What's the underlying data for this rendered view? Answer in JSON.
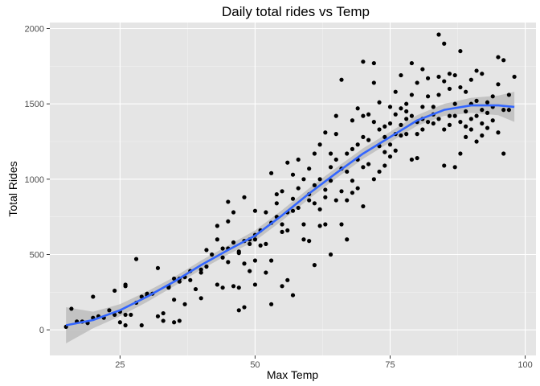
{
  "chart_data": {
    "type": "scatter",
    "title": "Daily total rides vs Temp",
    "xlabel": "Max Temp",
    "ylabel": "Total Rides",
    "xlim": [
      12,
      102
    ],
    "ylim": [
      -170,
      2040
    ],
    "x_ticks": [
      25,
      50,
      75,
      100
    ],
    "y_ticks": [
      0,
      500,
      1000,
      1500,
      2000
    ],
    "grid": true,
    "panel_background": "#e5e5e5",
    "point_color": "#000000",
    "smooth_color": "#3366ff",
    "ribbon_color": "#bdbdbd",
    "points": [
      [
        15,
        20
      ],
      [
        16,
        140
      ],
      [
        17,
        55
      ],
      [
        18,
        55
      ],
      [
        19,
        45
      ],
      [
        20,
        80
      ],
      [
        20,
        220
      ],
      [
        21,
        90
      ],
      [
        22,
        80
      ],
      [
        23,
        130
      ],
      [
        24,
        100
      ],
      [
        24,
        260
      ],
      [
        25,
        120
      ],
      [
        25,
        50
      ],
      [
        26,
        30
      ],
      [
        26,
        290
      ],
      [
        26,
        300
      ],
      [
        26,
        100
      ],
      [
        27,
        100
      ],
      [
        28,
        470
      ],
      [
        28,
        180
      ],
      [
        29,
        30
      ],
      [
        29,
        220
      ],
      [
        30,
        240
      ],
      [
        30,
        230
      ],
      [
        31,
        240
      ],
      [
        32,
        410
      ],
      [
        32,
        90
      ],
      [
        33,
        110
      ],
      [
        33,
        60
      ],
      [
        34,
        290
      ],
      [
        34,
        280
      ],
      [
        35,
        340
      ],
      [
        35,
        200
      ],
      [
        35,
        50
      ],
      [
        36,
        60
      ],
      [
        36,
        320
      ],
      [
        36,
        340
      ],
      [
        37,
        350
      ],
      [
        37,
        170
      ],
      [
        38,
        330
      ],
      [
        38,
        390
      ],
      [
        39,
        270
      ],
      [
        40,
        210
      ],
      [
        40,
        400
      ],
      [
        40,
        380
      ],
      [
        41,
        530
      ],
      [
        41,
        420
      ],
      [
        42,
        500
      ],
      [
        43,
        690
      ],
      [
        43,
        600
      ],
      [
        43,
        300
      ],
      [
        44,
        540
      ],
      [
        44,
        480
      ],
      [
        44,
        280
      ],
      [
        45,
        540
      ],
      [
        45,
        450
      ],
      [
        45,
        850
      ],
      [
        45,
        720
      ],
      [
        46,
        580
      ],
      [
        46,
        290
      ],
      [
        46,
        780
      ],
      [
        47,
        510
      ],
      [
        47,
        280
      ],
      [
        47,
        130
      ],
      [
        47,
        520
      ],
      [
        48,
        590
      ],
      [
        48,
        880
      ],
      [
        48,
        150
      ],
      [
        48,
        440
      ],
      [
        49,
        600
      ],
      [
        49,
        570
      ],
      [
        49,
        390
      ],
      [
        50,
        790
      ],
      [
        50,
        630
      ],
      [
        50,
        600
      ],
      [
        50,
        300
      ],
      [
        50,
        460
      ],
      [
        51,
        560
      ],
      [
        51,
        660
      ],
      [
        52,
        780
      ],
      [
        52,
        570
      ],
      [
        52,
        380
      ],
      [
        53,
        1040
      ],
      [
        53,
        710
      ],
      [
        53,
        460
      ],
      [
        53,
        170
      ],
      [
        54,
        900
      ],
      [
        54,
        840
      ],
      [
        54,
        750
      ],
      [
        55,
        920
      ],
      [
        55,
        700
      ],
      [
        55,
        650
      ],
      [
        55,
        290
      ],
      [
        56,
        1110
      ],
      [
        56,
        780
      ],
      [
        56,
        660
      ],
      [
        56,
        330
      ],
      [
        57,
        1030
      ],
      [
        57,
        870
      ],
      [
        57,
        790
      ],
      [
        57,
        230
      ],
      [
        58,
        1130
      ],
      [
        58,
        940
      ],
      [
        58,
        810
      ],
      [
        59,
        1000
      ],
      [
        59,
        700
      ],
      [
        59,
        600
      ],
      [
        60,
        1070
      ],
      [
        60,
        900
      ],
      [
        60,
        860
      ],
      [
        60,
        590
      ],
      [
        61,
        1170
      ],
      [
        61,
        960
      ],
      [
        61,
        840
      ],
      [
        61,
        430
      ],
      [
        62,
        1230
      ],
      [
        62,
        1000
      ],
      [
        62,
        800
      ],
      [
        62,
        690
      ],
      [
        63,
        1310
      ],
      [
        63,
        930
      ],
      [
        63,
        880
      ],
      [
        63,
        700
      ],
      [
        64,
        1170
      ],
      [
        64,
        1080
      ],
      [
        64,
        990
      ],
      [
        64,
        500
      ],
      [
        65,
        1420
      ],
      [
        65,
        1300
      ],
      [
        65,
        1130
      ],
      [
        65,
        860
      ],
      [
        66,
        1660
      ],
      [
        66,
        1070
      ],
      [
        66,
        920
      ],
      [
        66,
        700
      ],
      [
        67,
        1170
      ],
      [
        67,
        1050
      ],
      [
        67,
        860
      ],
      [
        67,
        600
      ],
      [
        68,
        1390
      ],
      [
        68,
        1200
      ],
      [
        68,
        990
      ],
      [
        68,
        910
      ],
      [
        69,
        1470
      ],
      [
        69,
        1230
      ],
      [
        69,
        1130
      ],
      [
        69,
        940
      ],
      [
        70,
        1780
      ],
      [
        70,
        1420
      ],
      [
        70,
        1280
      ],
      [
        70,
        1080
      ],
      [
        70,
        820
      ],
      [
        71,
        1430
      ],
      [
        71,
        1260
      ],
      [
        71,
        1100
      ],
      [
        72,
        1770
      ],
      [
        72,
        1640
      ],
      [
        72,
        1380
      ],
      [
        72,
        1000
      ],
      [
        73,
        1510
      ],
      [
        73,
        1330
      ],
      [
        73,
        1220
      ],
      [
        73,
        1050
      ],
      [
        74,
        1350
      ],
      [
        74,
        1280
      ],
      [
        74,
        1180
      ],
      [
        74,
        1090
      ],
      [
        75,
        1480
      ],
      [
        75,
        1370
      ],
      [
        75,
        1230
      ],
      [
        75,
        1150
      ],
      [
        76,
        1580
      ],
      [
        76,
        1430
      ],
      [
        76,
        1300
      ],
      [
        76,
        1190
      ],
      [
        77,
        1690
      ],
      [
        77,
        1470
      ],
      [
        77,
        1360
      ],
      [
        77,
        1290
      ],
      [
        78,
        1500
      ],
      [
        78,
        1450
      ],
      [
        78,
        1400
      ],
      [
        78,
        1300
      ],
      [
        79,
        1770
      ],
      [
        79,
        1560
      ],
      [
        79,
        1420
      ],
      [
        79,
        1130
      ],
      [
        80,
        1640
      ],
      [
        80,
        1380
      ],
      [
        80,
        1300
      ],
      [
        80,
        1140
      ],
      [
        81,
        1730
      ],
      [
        81,
        1480
      ],
      [
        81,
        1400
      ],
      [
        81,
        1330
      ],
      [
        82,
        1670
      ],
      [
        82,
        1550
      ],
      [
        82,
        1380
      ],
      [
        83,
        1480
      ],
      [
        83,
        1430
      ],
      [
        83,
        1370
      ],
      [
        84,
        1960
      ],
      [
        84,
        1680
      ],
      [
        84,
        1560
      ],
      [
        84,
        1400
      ],
      [
        85,
        1900
      ],
      [
        85,
        1650
      ],
      [
        85,
        1330
      ],
      [
        85,
        1090
      ],
      [
        86,
        1700
      ],
      [
        86,
        1600
      ],
      [
        86,
        1420
      ],
      [
        86,
        1360
      ],
      [
        87,
        1690
      ],
      [
        87,
        1500
      ],
      [
        87,
        1420
      ],
      [
        87,
        1080
      ],
      [
        88,
        1850
      ],
      [
        88,
        1610
      ],
      [
        88,
        1380
      ],
      [
        88,
        1170
      ],
      [
        89,
        1580
      ],
      [
        89,
        1450
      ],
      [
        89,
        1350
      ],
      [
        89,
        1280
      ],
      [
        90,
        1660
      ],
      [
        90,
        1500
      ],
      [
        90,
        1400
      ],
      [
        90,
        1330
      ],
      [
        91,
        1720
      ],
      [
        91,
        1520
      ],
      [
        91,
        1420
      ],
      [
        91,
        1250
      ],
      [
        92,
        1700
      ],
      [
        92,
        1460
      ],
      [
        92,
        1370
      ],
      [
        92,
        1290
      ],
      [
        93,
        1510
      ],
      [
        93,
        1440
      ],
      [
        93,
        1340
      ],
      [
        94,
        1550
      ],
      [
        94,
        1480
      ],
      [
        94,
        1390
      ],
      [
        95,
        1810
      ],
      [
        95,
        1630
      ],
      [
        95,
        1310
      ],
      [
        96,
        1790
      ],
      [
        96,
        1460
      ],
      [
        96,
        1170
      ],
      [
        97,
        1560
      ],
      [
        97,
        1460
      ],
      [
        98,
        1680
      ]
    ],
    "smooth_line": [
      [
        15,
        30
      ],
      [
        20,
        65
      ],
      [
        25,
        130
      ],
      [
        30,
        220
      ],
      [
        35,
        320
      ],
      [
        40,
        430
      ],
      [
        45,
        530
      ],
      [
        50,
        625
      ],
      [
        55,
        760
      ],
      [
        60,
        905
      ],
      [
        65,
        1040
      ],
      [
        70,
        1170
      ],
      [
        75,
        1280
      ],
      [
        80,
        1390
      ],
      [
        85,
        1460
      ],
      [
        90,
        1490
      ],
      [
        95,
        1490
      ],
      [
        98,
        1480
      ]
    ],
    "ribbon_lower": [
      [
        15,
        -90
      ],
      [
        20,
        10
      ],
      [
        25,
        90
      ],
      [
        30,
        185
      ],
      [
        35,
        290
      ],
      [
        40,
        400
      ],
      [
        45,
        500
      ],
      [
        50,
        590
      ],
      [
        55,
        725
      ],
      [
        60,
        870
      ],
      [
        65,
        1005
      ],
      [
        70,
        1135
      ],
      [
        75,
        1245
      ],
      [
        80,
        1355
      ],
      [
        85,
        1420
      ],
      [
        90,
        1440
      ],
      [
        95,
        1425
      ],
      [
        98,
        1380
      ]
    ],
    "ribbon_upper": [
      [
        15,
        150
      ],
      [
        20,
        120
      ],
      [
        25,
        170
      ],
      [
        30,
        255
      ],
      [
        35,
        350
      ],
      [
        40,
        460
      ],
      [
        45,
        560
      ],
      [
        50,
        660
      ],
      [
        55,
        795
      ],
      [
        60,
        940
      ],
      [
        65,
        1075
      ],
      [
        70,
        1205
      ],
      [
        75,
        1315
      ],
      [
        80,
        1425
      ],
      [
        85,
        1500
      ],
      [
        90,
        1540
      ],
      [
        95,
        1555
      ],
      [
        98,
        1580
      ]
    ]
  }
}
